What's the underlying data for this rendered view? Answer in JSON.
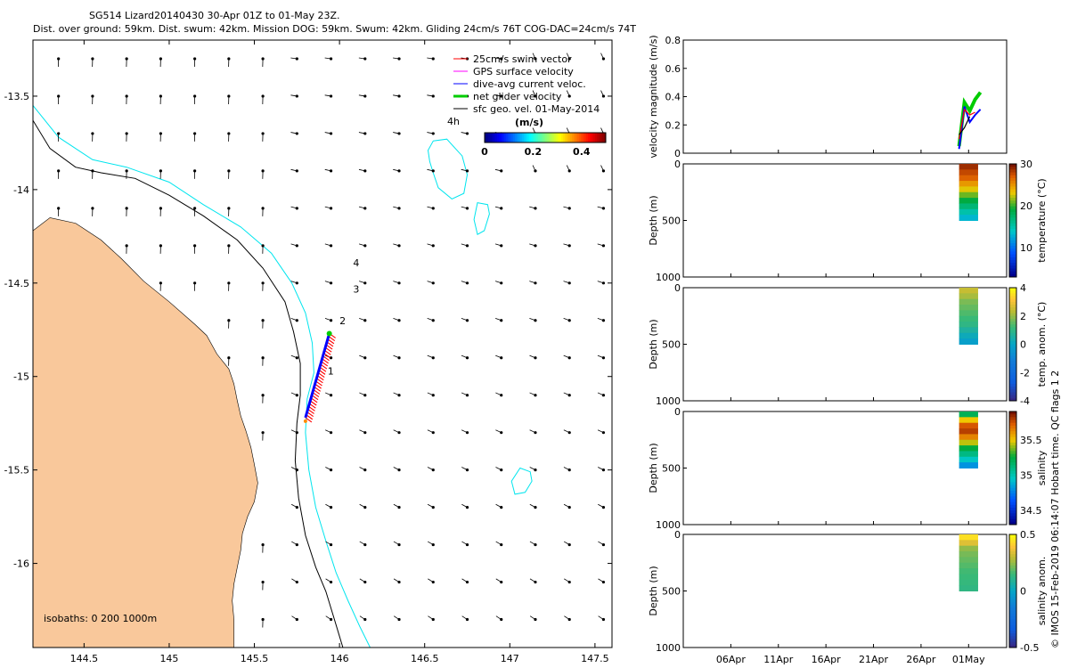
{
  "header": {
    "line1": "SG514 Lizard20140430 30-Apr 01Z to 01-May 23Z.",
    "line2": "Dist. over ground: 59km. Dist. swum: 42km. Mission DOG: 59km. Swum: 42km. Gliding 24cm/s 76T COG-DAC=24cm/s 74T"
  },
  "side_note": "© IMOS 15-Feb-2019 06:14:07 Hobart time. QC flags 1  2",
  "colors": {
    "land": "#f9c89b",
    "cyan_contour": "#00e5ee",
    "black_contour": "#000000",
    "track_red": "#ff0000",
    "track_blue": "#0000ff",
    "glider_green": "#00cc00",
    "gps_magenta": "#ff00ff"
  },
  "chart_data": [
    {
      "type": "scatter",
      "kind": "map",
      "xlim": [
        144.2,
        147.6
      ],
      "ylim": [
        -16.45,
        -13.2
      ],
      "xticks": [
        "144.5",
        "145",
        "145.5",
        "146",
        "146.5",
        "147",
        "147.5"
      ],
      "xtick_values": [
        144.5,
        145,
        145.5,
        146,
        146.5,
        147,
        147.5
      ],
      "yticks": [
        "-13.5",
        "-14",
        "-14.5",
        "-15",
        "-15.5",
        "-16"
      ],
      "ytick_values": [
        -13.5,
        -14,
        -14.5,
        -15,
        -15.5,
        -16
      ],
      "legend": {
        "position": "top-right",
        "entries": [
          "25cm/s swim vector",
          "GPS surface velocity",
          "dive-avg current veloc.",
          "net glider velocity",
          "sfc geo. vel. 01-May-2014"
        ]
      },
      "colorbar": {
        "title": "(m/s)",
        "ticks": [
          "0",
          "0.2",
          "0.4"
        ],
        "range": [
          0,
          0.5
        ]
      },
      "time_label": "4h",
      "isobaths_label": "isobaths: 0   200  1000m",
      "track": {
        "start": [
          145.8,
          -15.22
        ],
        "end": [
          145.94,
          -14.77
        ],
        "day_labels": [
          {
            "text": "1",
            "lon": 145.93,
            "lat": -14.99
          },
          {
            "text": "2",
            "lon": 146.0,
            "lat": -14.72
          },
          {
            "text": "3",
            "lon": 146.08,
            "lat": -14.55
          },
          {
            "text": "4",
            "lon": 146.08,
            "lat": -14.41
          }
        ]
      },
      "coast_lon": [
        144.2,
        144.3,
        144.45,
        144.6,
        144.72,
        144.85,
        145.0,
        145.15,
        145.22,
        145.28,
        145.35,
        145.38,
        145.4,
        145.42,
        145.45,
        145.48,
        145.5,
        145.52,
        145.5,
        145.46,
        145.43,
        145.42,
        145.4,
        145.38,
        145.37,
        145.38,
        145.38,
        144.2
      ],
      "coast_lat": [
        -14.22,
        -14.15,
        -14.18,
        -14.27,
        -14.37,
        -14.49,
        -14.6,
        -14.72,
        -14.78,
        -14.88,
        -14.96,
        -15.04,
        -15.13,
        -15.21,
        -15.29,
        -15.38,
        -15.47,
        -15.57,
        -15.67,
        -15.75,
        -15.84,
        -15.93,
        -16.02,
        -16.11,
        -16.2,
        -16.3,
        -16.45,
        -16.45
      ],
      "isobath_200_lon": [
        144.2,
        144.3,
        144.45,
        144.6,
        144.8,
        145.0,
        145.2,
        145.4,
        145.55,
        145.68,
        145.73,
        145.77,
        145.77,
        145.75,
        145.74,
        145.76,
        145.8,
        145.86,
        145.92,
        145.97,
        146.02
      ],
      "isobath_200_lat": [
        -13.63,
        -13.78,
        -13.88,
        -13.91,
        -13.94,
        -14.03,
        -14.14,
        -14.27,
        -14.42,
        -14.6,
        -14.76,
        -14.93,
        -15.1,
        -15.25,
        -15.45,
        -15.65,
        -15.85,
        -16.02,
        -16.15,
        -16.3,
        -16.45
      ],
      "isobath_1000_lon": [
        144.2,
        144.35,
        144.55,
        144.75,
        145.0,
        145.2,
        145.42,
        145.6,
        145.72,
        145.8,
        145.84,
        145.85,
        145.81,
        145.8,
        145.82,
        145.86,
        145.92,
        145.98,
        146.05,
        146.12,
        146.18
      ],
      "isobath_1000_lat": [
        -13.55,
        -13.72,
        -13.84,
        -13.88,
        -13.96,
        -14.08,
        -14.2,
        -14.34,
        -14.5,
        -14.66,
        -14.82,
        -14.98,
        -15.12,
        -15.3,
        -15.5,
        -15.7,
        -15.88,
        -16.05,
        -16.2,
        -16.34,
        -16.45
      ],
      "eddies": [
        {
          "lon": [
            146.55,
            146.63,
            146.72,
            146.75,
            146.73,
            146.66,
            146.58,
            146.55,
            146.53,
            146.52,
            146.55
          ],
          "lat": [
            -13.74,
            -13.73,
            -13.82,
            -13.92,
            -14.02,
            -14.05,
            -13.99,
            -13.91,
            -13.85,
            -13.79,
            -13.74
          ]
        },
        {
          "lon": [
            146.81,
            146.87,
            146.88,
            146.85,
            146.81,
            146.79,
            146.81
          ],
          "lat": [
            -14.07,
            -14.08,
            -14.13,
            -14.22,
            -14.24,
            -14.16,
            -14.07
          ]
        },
        {
          "lon": [
            147.06,
            147.12,
            147.13,
            147.09,
            147.03,
            147.01,
            147.06
          ],
          "lat": [
            -15.49,
            -15.51,
            -15.56,
            -15.62,
            -15.63,
            -15.56,
            -15.49
          ]
        }
      ]
    },
    {
      "type": "line",
      "xlim": [
        "2014-04-01",
        "2014-05-05"
      ],
      "xticks": [
        "06Apr",
        "11Apr",
        "16Apr",
        "21Apr",
        "26Apr",
        "01May"
      ],
      "ylabel": "velocity magnitude (m/s)",
      "ylim": [
        0,
        0.8
      ],
      "yticks": [
        "0",
        "0.2",
        "0.4",
        "0.6",
        "0.8"
      ],
      "series": [
        {
          "name": "net glider velocity",
          "x": [
            "2014-04-30",
            "2014-04-30",
            "2014-05-01",
            "2014-05-01",
            "2014-05-02"
          ],
          "values": [
            0.05,
            0.36,
            0.3,
            0.38,
            0.43
          ]
        },
        {
          "name": "dive-avg current veloc.",
          "x": [
            "2014-04-30",
            "2014-04-30",
            "2014-05-01",
            "2014-05-01",
            "2014-05-02"
          ],
          "values": [
            0.03,
            0.33,
            0.22,
            0.27,
            0.31
          ]
        },
        {
          "name": "25cm/s swim vector",
          "x": [
            "2014-04-30",
            "2014-04-30",
            "2014-05-01",
            "2014-05-02"
          ],
          "values": [
            0.1,
            0.31,
            0.27,
            0.29
          ]
        },
        {
          "name": "sfc geo. vel. 01-May-2014",
          "x": [
            "2014-04-30",
            "2014-05-01",
            "2014-05-02"
          ],
          "values": [
            0.13,
            0.18,
            0.26
          ]
        }
      ]
    },
    {
      "type": "heatmap",
      "xticks": [
        "06Apr",
        "11Apr",
        "16Apr",
        "21Apr",
        "26Apr",
        "01May"
      ],
      "ylabel": "Depth (m)",
      "ylim": [
        1000,
        0
      ],
      "yticks": [
        "0",
        "500",
        "1000"
      ],
      "colorbar_label": "temperature (°C)",
      "colorbar_range": [
        3,
        30
      ],
      "colorbar_ticks": [
        "10",
        "20",
        "30"
      ],
      "depth_profile": [
        0,
        50,
        100,
        150,
        200,
        250,
        300,
        350,
        400,
        450,
        500
      ],
      "values": [
        29,
        28,
        27,
        25,
        23,
        21,
        19,
        17,
        15,
        13,
        12
      ]
    },
    {
      "type": "heatmap",
      "xticks": [
        "06Apr",
        "11Apr",
        "16Apr",
        "21Apr",
        "26Apr",
        "01May"
      ],
      "ylabel": "Depth (m)",
      "ylim": [
        1000,
        0
      ],
      "yticks": [
        "0",
        "500",
        "1000"
      ],
      "colorbar_label": "temp. anom. (°C)",
      "colorbar_range": [
        -4,
        4
      ],
      "colorbar_ticks": [
        "-4",
        "-2",
        "0",
        "2",
        "4"
      ],
      "depth_profile": [
        0,
        50,
        100,
        150,
        200,
        250,
        300,
        350,
        400,
        450,
        500
      ],
      "values": [
        2.5,
        2.2,
        1.8,
        1.6,
        1.4,
        1.2,
        1.0,
        0.6,
        0.2,
        -0.2,
        -0.5
      ]
    },
    {
      "type": "heatmap",
      "xticks": [
        "06Apr",
        "11Apr",
        "16Apr",
        "21Apr",
        "26Apr",
        "01May"
      ],
      "ylabel": "Depth (m)",
      "ylim": [
        1000,
        0
      ],
      "yticks": [
        "0",
        "500",
        "1000"
      ],
      "colorbar_label": "salinity",
      "colorbar_range": [
        34.3,
        35.9
      ],
      "colorbar_ticks": [
        "34.5",
        "35",
        "35.5"
      ],
      "depth_profile": [
        0,
        50,
        100,
        150,
        200,
        250,
        300,
        350,
        400,
        450,
        500
      ],
      "values": [
        35.2,
        35.5,
        35.75,
        35.8,
        35.65,
        35.45,
        35.25,
        35.1,
        34.95,
        34.8,
        34.75
      ]
    },
    {
      "type": "heatmap",
      "xticks": [
        "06Apr",
        "11Apr",
        "16Apr",
        "21Apr",
        "26Apr",
        "01May"
      ],
      "ylabel": "Depth (m)",
      "ylim": [
        1000,
        0
      ],
      "yticks": [
        "0",
        "500",
        "1000"
      ],
      "colorbar_label": "salinity anom.",
      "colorbar_range": [
        -0.5,
        0.5
      ],
      "colorbar_ticks": [
        "-0.5",
        "0",
        "0.5"
      ],
      "depth_profile": [
        0,
        50,
        100,
        150,
        200,
        250,
        300,
        350,
        400,
        450,
        500
      ],
      "values": [
        0.45,
        0.35,
        0.25,
        0.22,
        0.2,
        0.18,
        0.16,
        0.15,
        0.14,
        0.13,
        0.12
      ]
    }
  ]
}
